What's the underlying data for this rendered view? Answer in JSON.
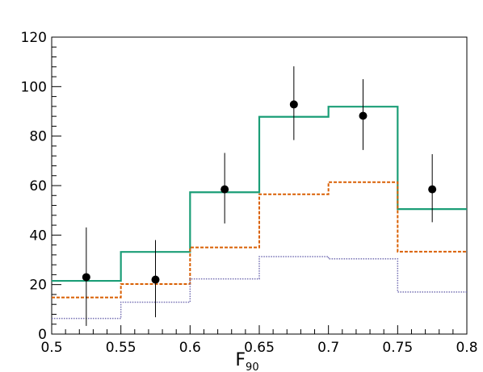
{
  "chart_data": {
    "type": "histogram",
    "xlabel": "F",
    "xlabel_subscript": "90",
    "ylabel": "",
    "xlim": [
      0.5,
      0.8
    ],
    "ylim": [
      0,
      120
    ],
    "x_ticks": [
      "0.5",
      "0.55",
      "0.6",
      "0.65",
      "0.7",
      "0.75",
      "0.8"
    ],
    "y_ticks": [
      "0",
      "20",
      "40",
      "60",
      "80",
      "100",
      "120"
    ],
    "bin_edges": [
      0.5,
      0.55,
      0.6,
      0.65,
      0.7,
      0.75,
      0.8
    ],
    "series": [
      {
        "style": "solid",
        "color": "#1b9e77",
        "values": [
          21.5,
          33.2,
          57.3,
          87.8,
          91.9,
          50.5
        ]
      },
      {
        "style": "dashed",
        "color": "#d95f02",
        "values": [
          14.8,
          20.2,
          35.0,
          56.5,
          61.4,
          33.3
        ]
      },
      {
        "style": "dotted",
        "color": "#7570b3",
        "values": [
          6.3,
          12.9,
          22.3,
          31.3,
          30.4,
          17.0
        ]
      },
      {
        "style": "points",
        "color": "#000000",
        "x": [
          0.525,
          0.575,
          0.625,
          0.675,
          0.725,
          0.775
        ],
        "values": [
          23,
          22,
          58.5,
          92.8,
          88.2,
          58.5
        ],
        "err_low": [
          19.7,
          15.2,
          13.8,
          14.4,
          13.8,
          13.3
        ],
        "err_high": [
          20.1,
          16.0,
          14.7,
          15.4,
          14.8,
          14.2
        ]
      }
    ]
  }
}
